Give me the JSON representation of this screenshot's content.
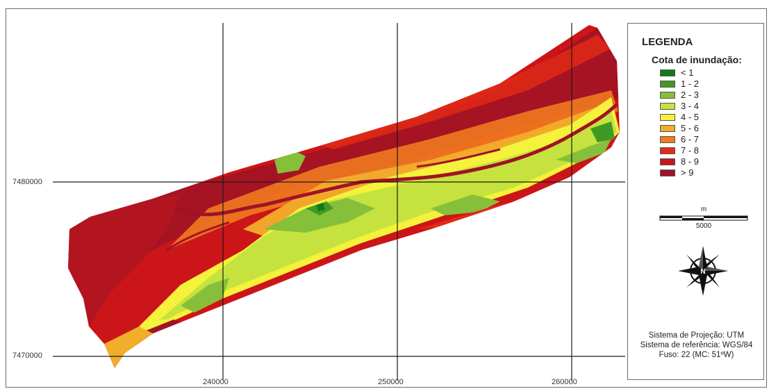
{
  "map": {
    "y_labels": [
      "7480000",
      "7470000"
    ],
    "x_labels": [
      "240000",
      "250000",
      "260000"
    ],
    "colors": {
      "c1": "#0f7a1f",
      "c2": "#3f9a25",
      "c3": "#86c03a",
      "c4": "#c6e23e",
      "c5": "#f4f23a",
      "c6": "#f2ad2b",
      "c7": "#ef7a1f",
      "c8": "#e42a15",
      "c9": "#cc1518",
      "c10": "#9f1326"
    }
  },
  "legend": {
    "title": "LEGENDA",
    "subtitle": "Cota de inundação:",
    "items": [
      {
        "label": "< 1",
        "color": "#0f7a1f"
      },
      {
        "label": "1 - 2",
        "color": "#3f9a25"
      },
      {
        "label": "2 - 3",
        "color": "#86c03a"
      },
      {
        "label": "3 - 4",
        "color": "#c6e23e"
      },
      {
        "label": "4 - 5",
        "color": "#f4f23a"
      },
      {
        "label": "5 - 6",
        "color": "#f2ad2b"
      },
      {
        "label": "6 - 7",
        "color": "#ef7a1f"
      },
      {
        "label": "7 - 8",
        "color": "#e42a15"
      },
      {
        "label": "8 - 9",
        "color": "#cc1518"
      },
      {
        "label": "> 9",
        "color": "#9f1326"
      }
    ],
    "scale_unit": "m",
    "scale_value": "5000",
    "north_letter": "N",
    "projection_lines": [
      "Sistema de Projeção: UTM",
      "Sistema de referência: WGS/84",
      "Fuso: 22 (MC: 51ºW)"
    ]
  }
}
